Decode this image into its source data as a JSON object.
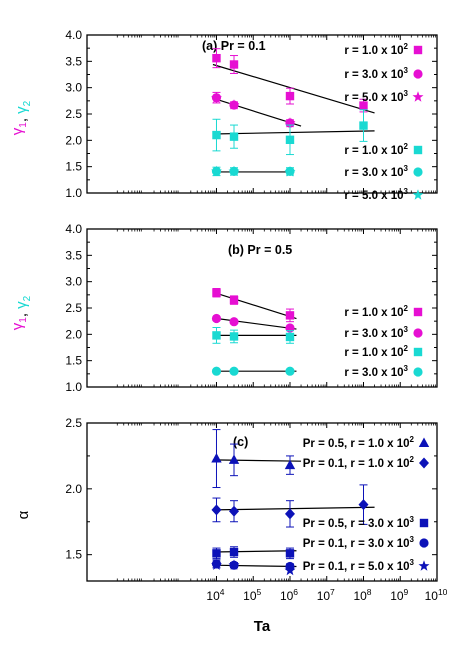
{
  "chart_data": [
    {
      "type": "scatter",
      "title": "(a) Pr = 0.1",
      "ylabel": {
        "parts": [
          {
            "t": "γ",
            "s": "1",
            "color": "#e60fd2"
          },
          {
            "t": ", ",
            "s": "",
            "color": "#000000"
          },
          {
            "t": "γ",
            "s": "2",
            "color": "#19d9d2"
          }
        ]
      },
      "xscale": "log",
      "xlim": [
        3,
        10000000000
      ],
      "ylim": [
        1.0,
        4.0
      ],
      "yticks": [
        "1.0",
        "1.5",
        "2.0",
        "2.5",
        "3.0",
        "3.5",
        "4.0"
      ],
      "series": [
        {
          "name": "r = 1.0 x 10^2",
          "color": "#e60fd2",
          "marker": "square",
          "x": [
            10000,
            30000,
            1000000,
            100000000
          ],
          "y": [
            3.56,
            3.44,
            2.84,
            2.66
          ],
          "err": [
            0.18,
            0.17,
            0.15,
            0.12
          ]
        },
        {
          "name": "r = 3.0 x 10^3",
          "color": "#e60fd2",
          "marker": "circle",
          "x": [
            10000,
            30000,
            1000000
          ],
          "y": [
            2.81,
            2.67,
            2.33
          ],
          "err": [
            0.1,
            0.06,
            0.06
          ]
        },
        {
          "name": "r = 5.0 x 10^3",
          "color": "#e60fd2",
          "marker": "star",
          "x": [
            10000,
            30000,
            1000000
          ],
          "y": [
            2.8,
            2.67,
            2.33
          ],
          "err": [
            0,
            0,
            0
          ]
        },
        {
          "name": "r = 1.0 x 10^2",
          "color": "#19d9d2",
          "marker": "square",
          "x": [
            10000,
            30000,
            1000000,
            100000000
          ],
          "y": [
            2.1,
            2.07,
            2.01,
            2.28
          ],
          "err": [
            0.3,
            0.22,
            0.28,
            0.3
          ]
        },
        {
          "name": "r = 3.0 x 10^3",
          "color": "#19d9d2",
          "marker": "circle",
          "x": [
            10000,
            30000,
            1000000
          ],
          "y": [
            1.41,
            1.41,
            1.41
          ],
          "err": [
            0.08,
            0.07,
            0.07
          ]
        },
        {
          "name": "r = 5.0 x 10^3",
          "color": "#19d9d2",
          "marker": "star",
          "x": [
            10000,
            30000,
            1000000
          ],
          "y": [
            1.41,
            1.41,
            1.4
          ],
          "err": [
            0,
            0,
            0
          ]
        }
      ],
      "fits": [
        {
          "x": [
            8000,
            200000000
          ],
          "y": [
            3.44,
            2.52
          ]
        },
        {
          "x": [
            8000,
            2000000
          ],
          "y": [
            2.8,
            2.27
          ]
        },
        {
          "x": [
            8000,
            200000000
          ],
          "y": [
            2.12,
            2.18
          ]
        },
        {
          "x": [
            8000,
            1200000
          ],
          "y": [
            1.4,
            1.4
          ]
        }
      ]
    },
    {
      "type": "scatter",
      "title": "(b) Pr = 0.5",
      "ylabel": {
        "parts": [
          {
            "t": "γ",
            "s": "1",
            "color": "#e60fd2"
          },
          {
            "t": ", ",
            "s": "",
            "color": "#000000"
          },
          {
            "t": "γ",
            "s": "2",
            "color": "#19d9d2"
          }
        ]
      },
      "xscale": "log",
      "xlim": [
        3,
        10000000000
      ],
      "ylim": [
        1.0,
        4.0
      ],
      "yticks": [
        "1.0",
        "1.5",
        "2.0",
        "2.5",
        "3.0",
        "3.5",
        "4.0"
      ],
      "series": [
        {
          "name": "r = 1.0 x 10^2",
          "color": "#e60fd2",
          "marker": "square",
          "x": [
            10000,
            30000,
            1000000
          ],
          "y": [
            2.79,
            2.65,
            2.36
          ],
          "err": [
            0.08,
            0.08,
            0.12
          ]
        },
        {
          "name": "r = 3.0 x 10^3",
          "color": "#e60fd2",
          "marker": "circle",
          "x": [
            10000,
            30000,
            1000000
          ],
          "y": [
            2.3,
            2.24,
            2.12
          ],
          "err": [
            0,
            0,
            0
          ]
        },
        {
          "name": "r = 1.0 x 10^2",
          "color": "#19d9d2",
          "marker": "square",
          "x": [
            10000,
            30000,
            1000000
          ],
          "y": [
            1.98,
            1.96,
            1.95
          ],
          "err": [
            0.15,
            0.12,
            0.12
          ]
        },
        {
          "name": "r = 3.0 x 10^3",
          "color": "#19d9d2",
          "marker": "circle",
          "x": [
            10000,
            30000,
            1000000
          ],
          "y": [
            1.3,
            1.3,
            1.3
          ],
          "err": [
            0,
            0,
            0
          ]
        }
      ],
      "fits": [
        {
          "x": [
            8000,
            1500000
          ],
          "y": [
            2.8,
            2.3
          ]
        },
        {
          "x": [
            8000,
            1500000
          ],
          "y": [
            2.31,
            2.1
          ]
        },
        {
          "x": [
            8000,
            1500000
          ],
          "y": [
            1.98,
            1.98
          ]
        },
        {
          "x": [
            8000,
            1500000
          ],
          "y": [
            1.3,
            1.3
          ]
        }
      ]
    },
    {
      "type": "scatter",
      "title": "(c)",
      "ylabel": {
        "parts": [
          {
            "t": "α",
            "s": "",
            "color": "#000000"
          }
        ]
      },
      "xlabel": "Ta",
      "xscale": "log",
      "xlim": [
        3,
        10000000000
      ],
      "ylim": [
        1.3,
        2.5
      ],
      "yticks": [
        "1.5",
        "2.0",
        "2.5"
      ],
      "xticks": [
        {
          "b": "10",
          "e": "4"
        },
        {
          "b": "10",
          "e": "5"
        },
        {
          "b": "10",
          "e": "6"
        },
        {
          "b": "10",
          "e": "7"
        },
        {
          "b": "10",
          "e": "8"
        },
        {
          "b": "10",
          "e": "9"
        },
        {
          "b": "10",
          "e": "10"
        }
      ],
      "series": [
        {
          "name": "Pr = 0.5, r = 1.0 x 10^2",
          "color": "#0c12b8",
          "marker": "triangle",
          "x": [
            10000,
            30000,
            1000000
          ],
          "y": [
            2.23,
            2.22,
            2.18
          ],
          "err": [
            0.22,
            0.12,
            0.07
          ]
        },
        {
          "name": "Pr = 0.1, r = 1.0 x 10^2",
          "color": "#0c12b8",
          "marker": "diamond",
          "x": [
            10000,
            30000,
            1000000,
            100000000
          ],
          "y": [
            1.84,
            1.83,
            1.81,
            1.88
          ],
          "err": [
            0.09,
            0.08,
            0.1,
            0.15
          ]
        },
        {
          "name": "Pr = 0.5, r = 3.0 x 10^3",
          "color": "#0c12b8",
          "marker": "square",
          "x": [
            10000,
            30000,
            1000000
          ],
          "y": [
            1.51,
            1.52,
            1.51
          ],
          "err": [
            0.04,
            0.04,
            0.04
          ]
        },
        {
          "name": "Pr = 0.1, r = 3.0 x 10^3",
          "color": "#0c12b8",
          "marker": "circle",
          "x": [
            10000,
            30000,
            1000000
          ],
          "y": [
            1.43,
            1.42,
            1.41
          ],
          "err": [
            0.03,
            0.02,
            0.02
          ]
        },
        {
          "name": "Pr = 0.1, r = 5.0 x 10^3",
          "color": "#0c12b8",
          "marker": "star",
          "x": [
            10000,
            30000,
            1000000
          ],
          "y": [
            1.42,
            1.42,
            1.38
          ],
          "err": [
            0,
            0,
            0
          ]
        }
      ],
      "fits": [
        {
          "x": [
            8000,
            2000000
          ],
          "y": [
            2.22,
            2.21
          ]
        },
        {
          "x": [
            8000,
            200000000
          ],
          "y": [
            1.84,
            1.86
          ]
        },
        {
          "x": [
            8000,
            1500000
          ],
          "y": [
            1.52,
            1.53
          ]
        },
        {
          "x": [
            8000,
            1500000
          ],
          "y": [
            1.42,
            1.41
          ]
        }
      ]
    }
  ]
}
